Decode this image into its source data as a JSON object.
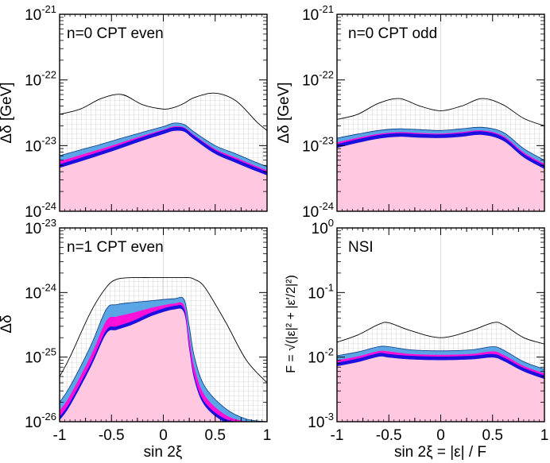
{
  "colors": {
    "excluded_fill": "#ffc8e0",
    "band_outer": "#5aa5e6",
    "band_magenta": "#ff10d8",
    "band_blue": "#1a10e0",
    "grid_hatch": "#bbbbbb",
    "reference_line": "#dcdcdc"
  },
  "labels": {
    "ylabel_tl": "Δδ [GeV]",
    "ylabel_tr": "Δδ [GeV]",
    "ylabel_bl": "Δδ",
    "ylabel_br": "F = √(|ε|² + |ε′/2|²)",
    "xlabel_bl": "sin 2ξ",
    "xlabel_br": "sin 2ξ = |ε| / F"
  },
  "x_tick_labels": [
    "-1",
    "-0.5",
    "0",
    "0.5",
    "1"
  ],
  "chart_data": [
    {
      "type": "area",
      "panel": "top-left",
      "title": "n=0 CPT even",
      "xlabel": "",
      "ylabel": "Δδ [GeV]",
      "xlim": [
        -1,
        1
      ],
      "ylim": [
        1e-24,
        1e-21
      ],
      "yscale": "log",
      "y_tick_labels": [
        "10^-24",
        "10^-23",
        "10^-22",
        "10^-21"
      ],
      "x": [
        -1,
        -0.8,
        -0.6,
        -0.4,
        -0.2,
        0,
        0.1,
        0.2,
        0.3,
        0.5,
        0.7,
        0.9,
        1
      ],
      "series": [
        {
          "role": "hatched_upper",
          "y": [
            3e-23,
            3.6e-23,
            5.2e-23,
            6e-23,
            4.2e-23,
            3.6e-23,
            3.8e-23,
            4.4e-23,
            5.4e-23,
            6.3e-23,
            4.8e-23,
            2.3e-23,
            1.7e-23
          ]
        },
        {
          "role": "allowed_outer",
          "y": [
            7e-24,
            8.6e-24,
            1.05e-23,
            1.3e-23,
            1.6e-23,
            1.95e-23,
            2.2e-23,
            2.1e-23,
            1.6e-23,
            1e-23,
            7.5e-24,
            5.5e-24,
            4.8e-24
          ]
        },
        {
          "role": "allowed_inner",
          "y": [
            5.2e-24,
            6.5e-24,
            8.2e-24,
            1.05e-23,
            1.35e-23,
            1.7e-23,
            1.9e-23,
            1.85e-23,
            1.4e-23,
            8.5e-24,
            6.2e-24,
            4.6e-24,
            4e-24
          ]
        }
      ]
    },
    {
      "type": "area",
      "panel": "top-right",
      "title": "n=0 CPT odd",
      "xlabel": "",
      "ylabel": "Δδ [GeV]",
      "xlim": [
        -1,
        1
      ],
      "ylim": [
        1e-24,
        1e-21
      ],
      "yscale": "log",
      "y_tick_labels": [
        "10^-24",
        "10^-23",
        "10^-22",
        "10^-21"
      ],
      "x": [
        -1,
        -0.8,
        -0.6,
        -0.4,
        -0.2,
        0,
        0.2,
        0.4,
        0.6,
        0.8,
        1
      ],
      "series": [
        {
          "role": "hatched_upper",
          "y": [
            2.5e-23,
            3e-23,
            4.4e-23,
            5.2e-23,
            4e-23,
            3.4e-23,
            4e-23,
            5.2e-23,
            4.2e-23,
            2.6e-23,
            2e-23
          ]
        },
        {
          "role": "allowed_outer",
          "y": [
            1.3e-23,
            1.5e-23,
            1.7e-23,
            1.8e-23,
            1.75e-23,
            1.7e-23,
            1.8e-23,
            1.9e-23,
            1.6e-23,
            9e-24,
            6e-24
          ]
        },
        {
          "role": "allowed_inner",
          "y": [
            1.05e-23,
            1.25e-23,
            1.45e-23,
            1.55e-23,
            1.5e-23,
            1.48e-23,
            1.55e-23,
            1.65e-23,
            1.35e-23,
            7.5e-24,
            5e-24
          ]
        }
      ]
    },
    {
      "type": "area",
      "panel": "bottom-left",
      "title": "n=1 CPT even",
      "xlabel": "sin 2ξ",
      "ylabel": "Δδ",
      "xlim": [
        -1,
        1
      ],
      "ylim": [
        1e-26,
        1e-23
      ],
      "yscale": "log",
      "y_tick_labels": [
        "10^-26",
        "10^-25",
        "10^-24",
        "10^-23"
      ],
      "x": [
        -1,
        -0.9,
        -0.7,
        -0.55,
        -0.45,
        -0.3,
        -0.1,
        0.1,
        0.2,
        0.25,
        0.3,
        0.4,
        0.6,
        0.8,
        1
      ],
      "series": [
        {
          "role": "hatched_upper",
          "y": [
            5e-26,
            1e-25,
            5e-25,
            1.2e-24,
            1.6e-24,
            1.7e-24,
            1.7e-24,
            1.7e-24,
            1.7e-24,
            1.7e-24,
            1.6e-24,
            1.2e-24,
            3.5e-25,
            9e-26,
            4e-26
          ]
        },
        {
          "role": "allowed_outer",
          "y": [
            2e-26,
            3.5e-26,
            1.5e-25,
            5.5e-25,
            6.5e-25,
            7e-25,
            7.5e-25,
            8e-25,
            7.8e-25,
            3e-25,
            1e-25,
            3.5e-26,
            1.6e-26,
            1.1e-26,
            1e-26
          ]
        },
        {
          "role": "allowed_inner",
          "y": [
            1.2e-26,
            2e-26,
            8e-26,
            2.6e-25,
            3e-25,
            3.6e-25,
            5e-25,
            6.2e-25,
            5.5e-25,
            1.5e-25,
            5e-26,
            2e-26,
            1.1e-26,
            1e-26,
            1e-26
          ]
        }
      ]
    },
    {
      "type": "area",
      "panel": "bottom-right",
      "title": "NSI",
      "xlabel": "sin 2ξ = |ε| / F",
      "ylabel": "F = √(|ε|² + |ε′/2|²)",
      "xlim": [
        -1,
        1
      ],
      "ylim": [
        0.001,
        1
      ],
      "yscale": "log",
      "y_tick_labels": [
        "10^-3",
        "10^-2",
        "10^-1",
        "10^0"
      ],
      "x": [
        -1,
        -0.8,
        -0.6,
        -0.5,
        -0.3,
        0,
        0.3,
        0.5,
        0.6,
        0.8,
        1
      ],
      "series": [
        {
          "role": "hatched_upper",
          "y": [
            0.017,
            0.022,
            0.032,
            0.034,
            0.026,
            0.02,
            0.026,
            0.034,
            0.032,
            0.02,
            0.016
          ]
        },
        {
          "role": "allowed_outer",
          "y": [
            0.0105,
            0.012,
            0.0145,
            0.0145,
            0.013,
            0.0125,
            0.013,
            0.0145,
            0.013,
            0.0085,
            0.0065
          ]
        },
        {
          "role": "allowed_inner",
          "y": [
            0.0082,
            0.0095,
            0.0115,
            0.0112,
            0.0105,
            0.0102,
            0.0105,
            0.0112,
            0.01,
            0.0068,
            0.0052
          ]
        }
      ]
    }
  ]
}
